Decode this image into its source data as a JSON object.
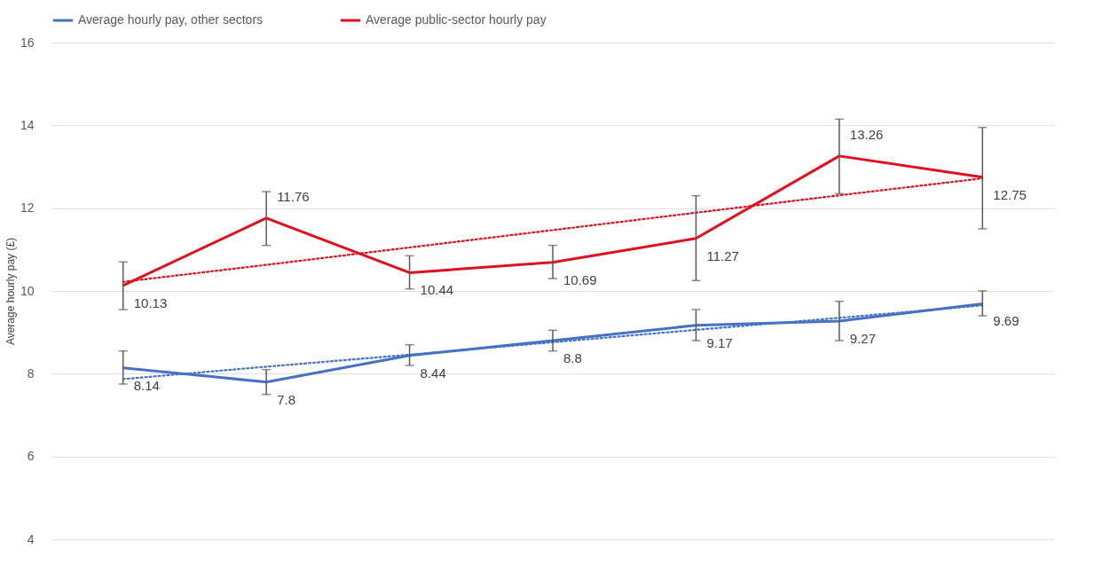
{
  "chart_data": {
    "type": "line",
    "ylabel": "Average hourly pay (£)",
    "categories": [
      null,
      null,
      null,
      null,
      null,
      null,
      null
    ],
    "ylim": [
      4,
      16
    ],
    "yticks": [
      4,
      6,
      8,
      10,
      12,
      14,
      16
    ],
    "grid": "y",
    "legend": "top",
    "marker": "none",
    "series": [
      {
        "name": "Average hourly pay, other sectors",
        "color": "#4472c4",
        "line_style": "solid",
        "values": [
          8.14,
          7.8,
          8.44,
          8.8,
          9.17,
          9.27,
          9.69
        ],
        "value_labels": [
          "8.14",
          "7.8",
          "8.44",
          "8.8",
          "9.17",
          "9.27",
          "9.69"
        ],
        "errors": [
          [
            7.75,
            8.55
          ],
          [
            7.5,
            8.1
          ],
          [
            8.2,
            8.7
          ],
          [
            8.55,
            9.05
          ],
          [
            8.8,
            9.55
          ],
          [
            8.8,
            9.75
          ],
          [
            9.4,
            10.0
          ]
        ]
      },
      {
        "name": "Average public-sector hourly pay",
        "color": "#e0101e",
        "line_style": "solid",
        "values": [
          10.13,
          11.76,
          10.44,
          10.69,
          11.27,
          13.26,
          12.75
        ],
        "value_labels": [
          "10.13",
          "11.76",
          "10.44",
          "10.69",
          "11.27",
          "13.26",
          "12.75"
        ],
        "errors": [
          [
            9.55,
            10.7
          ],
          [
            11.1,
            12.4
          ],
          [
            10.05,
            10.85
          ],
          [
            10.3,
            11.1
          ],
          [
            10.25,
            12.3
          ],
          [
            12.35,
            14.15
          ],
          [
            11.5,
            13.95
          ]
        ]
      },
      {
        "type": "line",
        "color": "#4472c4",
        "line_style": "dotted",
        "values": [
          7.87,
          8.17,
          8.46,
          8.76,
          9.06,
          9.35,
          9.65
        ]
      },
      {
        "type": "line",
        "color": "#e0101e",
        "line_style": "dotted",
        "values": [
          10.22,
          10.63,
          11.05,
          11.47,
          11.89,
          12.31,
          12.72
        ]
      }
    ]
  }
}
